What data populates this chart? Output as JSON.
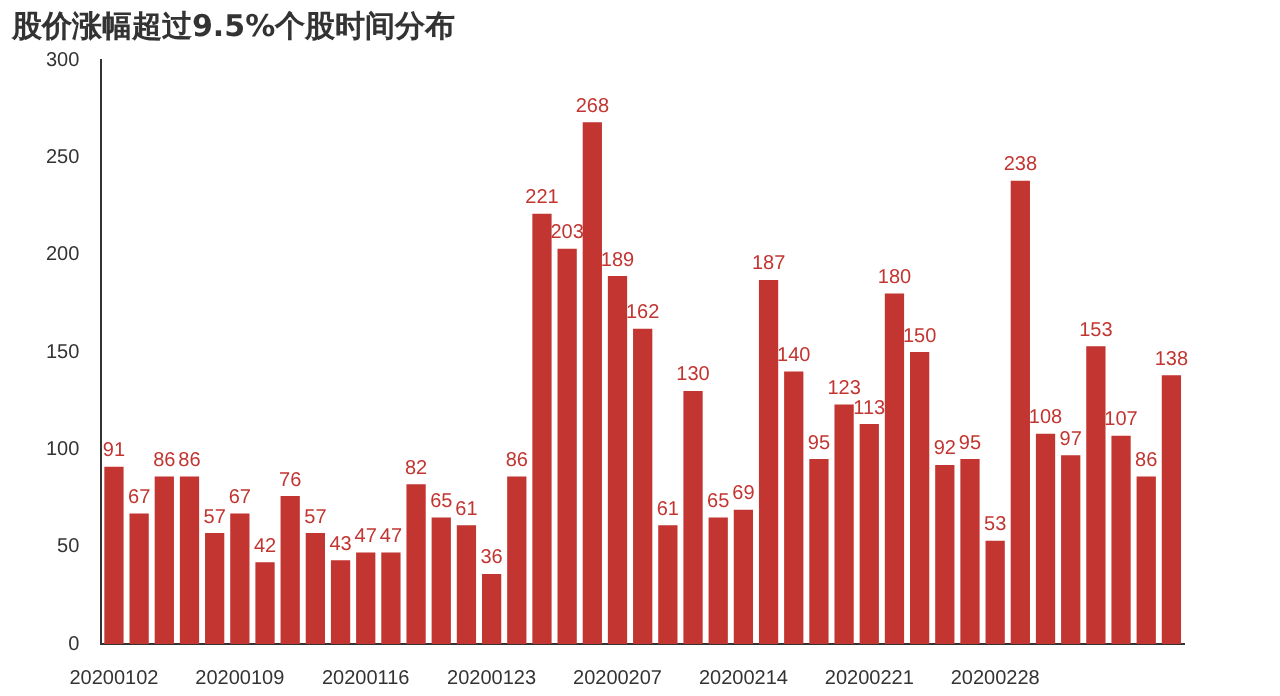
{
  "chart_data": {
    "type": "bar",
    "title": "股价涨幅超过9.5%个股时间分布",
    "categories": [
      "20200102",
      null,
      null,
      null,
      null,
      "20200109",
      null,
      null,
      null,
      null,
      "20200116",
      null,
      null,
      null,
      null,
      "20200123",
      null,
      null,
      null,
      null,
      "20200207",
      null,
      null,
      null,
      null,
      "20200214",
      null,
      null,
      null,
      null,
      "20200221",
      null,
      null,
      null,
      null,
      "20200228",
      null,
      null,
      null,
      null,
      null,
      null,
      null
    ],
    "values": [
      91,
      67,
      86,
      86,
      57,
      67,
      42,
      76,
      57,
      43,
      47,
      47,
      82,
      65,
      61,
      36,
      86,
      221,
      203,
      268,
      189,
      162,
      61,
      130,
      65,
      69,
      187,
      140,
      95,
      123,
      113,
      180,
      150,
      92,
      95,
      53,
      238,
      108,
      97,
      153,
      107,
      86,
      138
    ],
    "color": "#c23531",
    "data_labels": true,
    "ylim": [
      0,
      300
    ],
    "yticks": [
      0,
      50,
      100,
      150,
      200,
      250,
      300
    ],
    "grid": false,
    "legend": false
  }
}
